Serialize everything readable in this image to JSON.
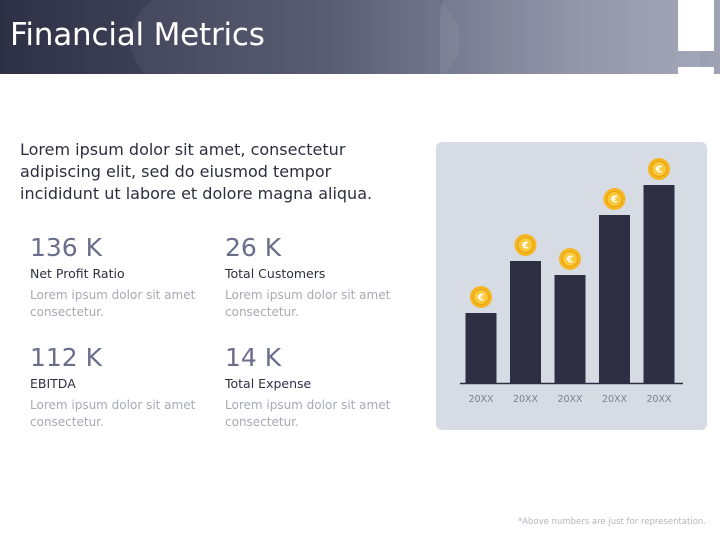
{
  "header": {
    "title": "Financial Metrics"
  },
  "intro": "Lorem ipsum dolor sit amet, consectetur adipiscing elit, sed do eiusmod tempor incididunt ut labore et dolore magna aliqua.",
  "metrics": [
    {
      "value": "136 K",
      "label": "Net Profit Ratio",
      "desc": "Lorem ipsum dolor sit amet consectetur."
    },
    {
      "value": "26 K",
      "label": "Total Customers",
      "desc": "Lorem ipsum dolor sit amet consectetur."
    },
    {
      "value": "112 K",
      "label": "EBITDA",
      "desc": "Lorem ipsum dolor sit amet consectetur."
    },
    {
      "value": "14 K",
      "label": "Total Expense",
      "desc": "Lorem ipsum dolor sit amet consectetur."
    }
  ],
  "footnote": "*Above numbers are just for representation.",
  "chart_data": {
    "type": "bar",
    "categories": [
      "20XX",
      "20XX",
      "20XX",
      "20XX",
      "20XX"
    ],
    "values": [
      35,
      61,
      54,
      84,
      99
    ],
    "ylim": [
      0,
      100
    ],
    "grid": false,
    "legend": "none",
    "marker_icon": "euro-coin-icon",
    "colors": {
      "bar": "#2e2f42",
      "axis": "#2e2f42",
      "coin_outer": "#f6b620",
      "coin_inner": "#f8c93a",
      "coin_symbol": "#ffffff",
      "card": "#d7dbe4"
    }
  }
}
